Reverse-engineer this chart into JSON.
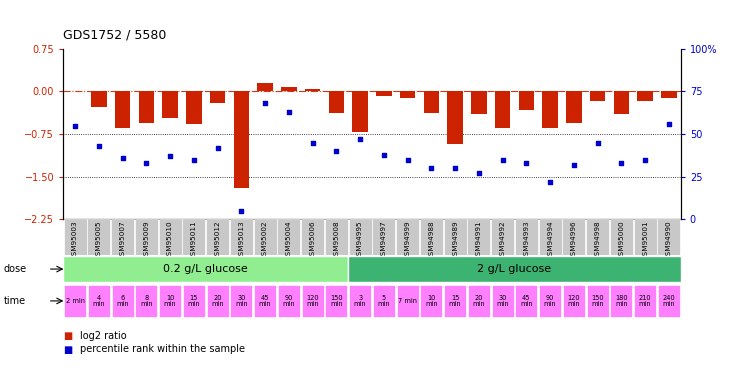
{
  "title": "GDS1752 / 5580",
  "samples": [
    "GSM95003",
    "GSM95005",
    "GSM95007",
    "GSM95009",
    "GSM95010",
    "GSM95011",
    "GSM95012",
    "GSM95013",
    "GSM95002",
    "GSM95004",
    "GSM95006",
    "GSM95008",
    "GSM94995",
    "GSM94997",
    "GSM94999",
    "GSM94988",
    "GSM94989",
    "GSM94991",
    "GSM94992",
    "GSM94993",
    "GSM94994",
    "GSM94996",
    "GSM94998",
    "GSM95000",
    "GSM95001",
    "GSM94990"
  ],
  "log2_ratio": [
    0.0,
    -0.28,
    -0.65,
    -0.55,
    -0.47,
    -0.58,
    -0.2,
    -1.7,
    0.15,
    0.08,
    0.05,
    -0.38,
    -0.72,
    -0.08,
    -0.12,
    -0.38,
    -0.92,
    -0.4,
    -0.65,
    -0.32,
    -0.65,
    -0.55,
    -0.16,
    -0.4,
    -0.16,
    -0.12
  ],
  "percentile": [
    55,
    43,
    36,
    33,
    37,
    35,
    42,
    5,
    68,
    63,
    45,
    40,
    47,
    38,
    35,
    30,
    30,
    27,
    35,
    33,
    22,
    32,
    45,
    33,
    35,
    56
  ],
  "time_labels_02": [
    "2 min",
    "4\nmin",
    "6\nmin",
    "8\nmin",
    "10\nmin",
    "15\nmin",
    "20\nmin",
    "30\nmin",
    "45\nmin",
    "90\nmin",
    "120\nmin",
    "150\nmin"
  ],
  "time_labels_2": [
    "3\nmin",
    "5\nmin",
    "7 min",
    "10\nmin",
    "15\nmin",
    "20\nmin",
    "30\nmin",
    "45\nmin",
    "90\nmin",
    "120\nmin",
    "150\nmin",
    "180\nmin",
    "210\nmin",
    "240\nmin"
  ],
  "dose_02_label": "0.2 g/L glucose",
  "dose_2_label": "2 g/L glucose",
  "bar_color": "#CC2200",
  "dot_color": "#0000CC",
  "ylim_left": [
    -2.25,
    0.75
  ],
  "ylim_right": [
    0,
    100
  ],
  "yticks_left": [
    0.75,
    0,
    -0.75,
    -1.5,
    -2.25
  ],
  "yticks_right": [
    100,
    75,
    50,
    25,
    0
  ],
  "dose_02_color": "#90EE90",
  "dose_2_color": "#3CB371",
  "time_color": "#FF80FF",
  "sample_bg_color": "#C8C8C8",
  "n_samples": 26,
  "n_02": 12,
  "n_2": 14
}
